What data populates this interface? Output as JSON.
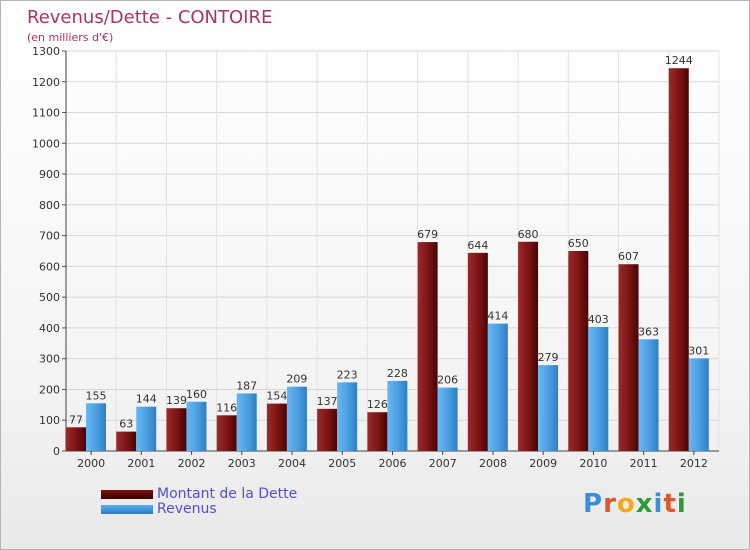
{
  "title": "Revenus/Dette - CONTOIRE",
  "subtitle": "(en milliers d'€)",
  "logo": {
    "text": "Proxiti",
    "colors": [
      "#3a8fd6",
      "#e0552b",
      "#f2a91e",
      "#2c9a3c",
      "#3a8fd6",
      "#e0552b",
      "#2c9a3c"
    ]
  },
  "colors": {
    "dette": "#8b1a1a",
    "revenus": "#4a9de0",
    "title": "#b0306a",
    "legend_text": "#4f4fd8"
  },
  "chart_data": {
    "type": "bar",
    "title": "Revenus/Dette - CONTOIRE",
    "subtitle": "(en milliers d'€)",
    "categories": [
      "2000",
      "2001",
      "2002",
      "2003",
      "2004",
      "2005",
      "2006",
      "2007",
      "2008",
      "2009",
      "2010",
      "2011",
      "2012"
    ],
    "series": [
      {
        "name": "Montant de la Dette",
        "values": [
          77,
          63,
          139,
          116,
          154,
          137,
          126,
          679,
          644,
          680,
          650,
          607,
          1244
        ]
      },
      {
        "name": "Revenus",
        "values": [
          155,
          144,
          160,
          187,
          209,
          223,
          228,
          206,
          414,
          279,
          403,
          363,
          301
        ]
      }
    ],
    "ylim": [
      0,
      1300
    ],
    "yticks": [
      0,
      100,
      200,
      300,
      400,
      500,
      600,
      700,
      800,
      900,
      1000,
      1100,
      1200,
      1300
    ],
    "grid": true,
    "legend_position": "bottom-left"
  }
}
